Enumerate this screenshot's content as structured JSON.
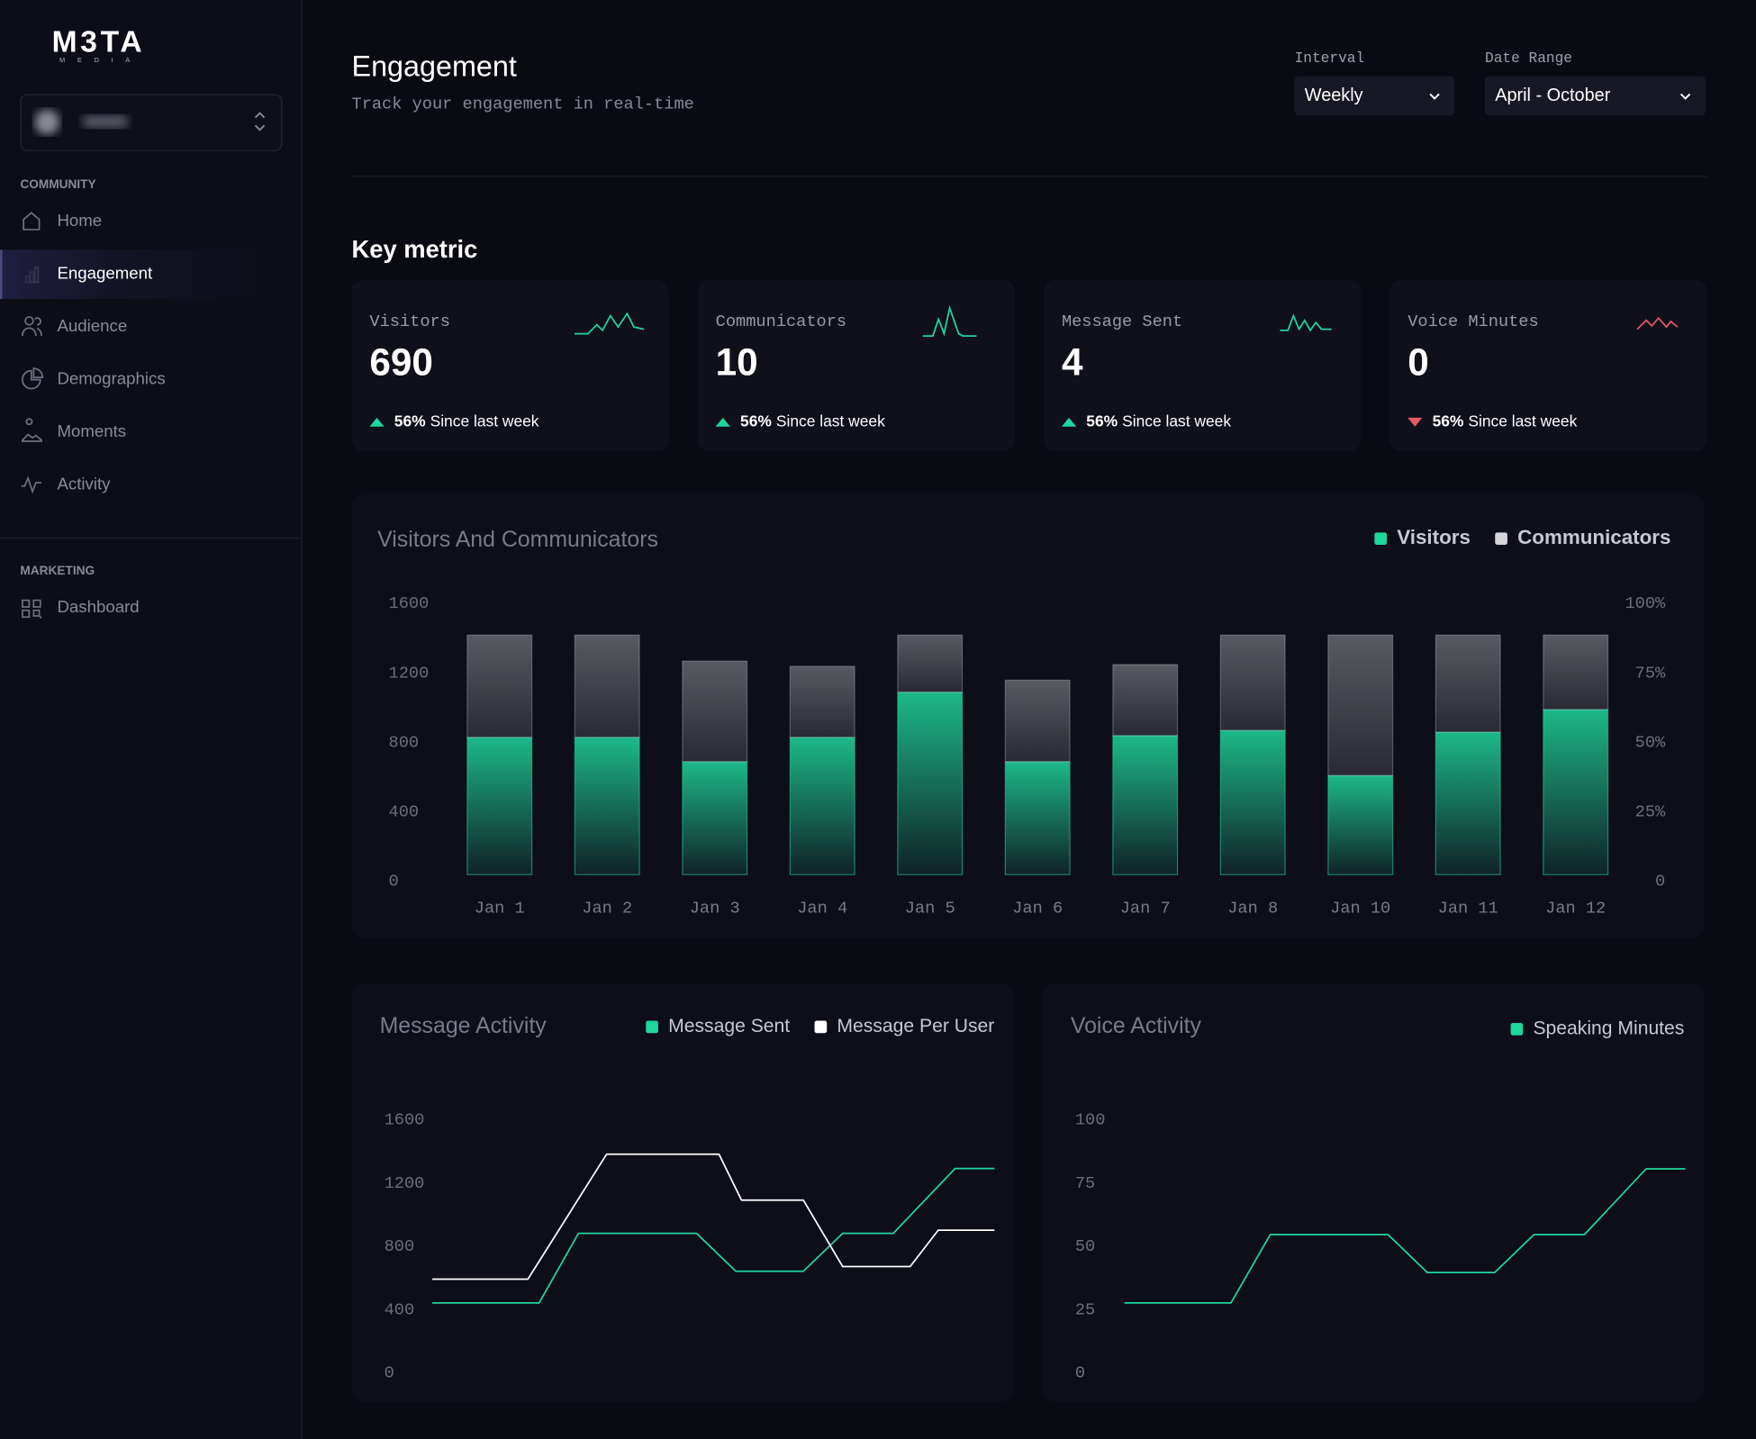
{
  "sidebar": {
    "logo": "M3TA",
    "logo_sub": "MEDIA",
    "sections": [
      {
        "title": "COMMUNITY",
        "items": [
          {
            "label": "Home",
            "active": false
          },
          {
            "label": "Engagement",
            "active": true
          },
          {
            "label": "Audience",
            "active": false
          },
          {
            "label": "Demographics",
            "active": false
          },
          {
            "label": "Moments",
            "active": false
          },
          {
            "label": "Activity",
            "active": false
          }
        ]
      },
      {
        "title": "MARKETING",
        "items": [
          {
            "label": "Dashboard",
            "active": false
          }
        ]
      }
    ]
  },
  "header": {
    "title": "Engagement",
    "subtitle": "Track your engagement in real-time",
    "filters": [
      {
        "label": "Interval",
        "value": "Weekly"
      },
      {
        "label": "Date Range",
        "value": "April - October"
      }
    ]
  },
  "key_metrics": {
    "title": "Key metric",
    "cards": [
      {
        "label": "Visitors",
        "value": 690,
        "change": "56%",
        "change_text": "Since last week",
        "trend": "up"
      },
      {
        "label": "Communicators",
        "value": 10,
        "change": "56%",
        "change_text": "Since last week",
        "trend": "up"
      },
      {
        "label": "Message Sent",
        "value": 4,
        "change": "56%",
        "change_text": "Since last week",
        "trend": "up"
      },
      {
        "label": "Voice Minutes",
        "value": 0,
        "change": "56%",
        "change_text": "Since last week",
        "trend": "down"
      }
    ]
  },
  "chart_data": [
    {
      "type": "bar",
      "stacked": true,
      "title": "Visitors And Communicators",
      "categories": [
        "Jan 1",
        "Jan 2",
        "Jan 3",
        "Jan 4",
        "Jan 5",
        "Jan 6",
        "Jan 7",
        "Jan 8",
        "Jan 10",
        "Jan 11",
        "Jan 12"
      ],
      "series": [
        {
          "name": "Visitors",
          "color": "#1fd69b",
          "values": [
            790,
            790,
            650,
            790,
            1050,
            650,
            800,
            830,
            570,
            820,
            950
          ]
        },
        {
          "name": "Communicators",
          "color": "#d4d4da",
          "values": [
            590,
            590,
            580,
            410,
            330,
            470,
            410,
            550,
            810,
            560,
            430
          ]
        }
      ],
      "ylim": [
        0,
        1600
      ],
      "yticks": [
        0,
        400,
        800,
        1200,
        1600
      ],
      "y2lim": [
        0,
        100
      ],
      "y2ticks": [
        0,
        {
          "value": 25,
          "label": "25%"
        },
        {
          "value": 50,
          "label": "50%"
        },
        {
          "value": 75,
          "label": "75%"
        },
        {
          "value": 100,
          "label": "100%"
        }
      ]
    },
    {
      "type": "line",
      "title": "Message Activity",
      "xlim": [
        0,
        100
      ],
      "ylim": [
        0,
        1600
      ],
      "yticks": [
        0,
        400,
        800,
        1200,
        1600
      ],
      "series": [
        {
          "name": "Message Sent",
          "color": "#1fd69b",
          "x": [
            0,
            19,
            26,
            47,
            54,
            66,
            73,
            82,
            93,
            100
          ],
          "values": [
            400,
            400,
            840,
            840,
            600,
            600,
            840,
            840,
            1250,
            1250
          ]
        },
        {
          "name": "Message Per User",
          "color": "#ffffff",
          "x": [
            0,
            17,
            31,
            51,
            55,
            66,
            73,
            85,
            90,
            100
          ],
          "values": [
            550,
            550,
            1340,
            1340,
            1050,
            1050,
            630,
            630,
            860,
            860
          ]
        }
      ]
    },
    {
      "type": "line",
      "title": "Voice Activity",
      "xlim": [
        0,
        100
      ],
      "ylim": [
        0,
        100
      ],
      "yticks": [
        0,
        25,
        50,
        75,
        100
      ],
      "series": [
        {
          "name": "Speaking Minutes",
          "color": "#1fd69b",
          "x": [
            0,
            19,
            26,
            47,
            54,
            66,
            73,
            82,
            93,
            100
          ],
          "values": [
            25,
            25,
            52,
            52,
            37,
            37,
            52,
            52,
            78,
            78
          ]
        }
      ]
    }
  ]
}
